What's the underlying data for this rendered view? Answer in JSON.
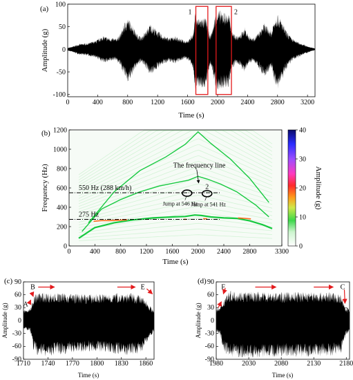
{
  "colors": {
    "signal": "#000000",
    "box": "#e31a1c",
    "arrow": "#e31a1c",
    "ridge": "#16c93f"
  },
  "chart_data": [
    {
      "id": "a",
      "panel_label": "(a)",
      "type": "area",
      "xlabel": "Time (s)",
      "ylabel": "Amplitude (g)",
      "xlim": [
        0,
        3300
      ],
      "ylim": [
        -105,
        100
      ],
      "xticks": [
        "0",
        "400",
        "800",
        "1200",
        "1600",
        "2000",
        "2400",
        "2800",
        "3200"
      ],
      "yticks": [
        "-100",
        "-50",
        "0",
        "50",
        "100"
      ],
      "envelope": {
        "t": [
          0,
          60,
          150,
          260,
          380,
          470,
          560,
          640,
          700,
          760,
          800,
          860,
          920,
          980,
          1040,
          1100,
          1200,
          1280,
          1360,
          1430,
          1500,
          1560,
          1620,
          1680,
          1700,
          1720,
          1750,
          1800,
          1850,
          1870,
          1900,
          1940,
          1980,
          2000,
          2050,
          2100,
          2150,
          2200,
          2240,
          2300,
          2360,
          2420,
          2480,
          2560,
          2620,
          2680,
          2720,
          2760,
          2800,
          2860,
          2920,
          3000,
          3080,
          3140,
          3200,
          3260,
          3300
        ],
        "pos": [
          3,
          6,
          12,
          14,
          20,
          30,
          26,
          24,
          34,
          60,
          70,
          58,
          36,
          28,
          40,
          58,
          42,
          30,
          26,
          30,
          24,
          20,
          22,
          40,
          85,
          72,
          70,
          72,
          70,
          50,
          30,
          52,
          88,
          90,
          85,
          83,
          80,
          40,
          30,
          32,
          50,
          30,
          26,
          40,
          58,
          48,
          40,
          72,
          80,
          62,
          40,
          24,
          16,
          12,
          7,
          4,
          2
        ],
        "neg": [
          -3,
          -6,
          -12,
          -14,
          -20,
          -30,
          -28,
          -24,
          -36,
          -62,
          -72,
          -60,
          -38,
          -30,
          -42,
          -58,
          -44,
          -32,
          -28,
          -32,
          -26,
          -22,
          -26,
          -50,
          -90,
          -86,
          -85,
          -88,
          -84,
          -60,
          -32,
          -56,
          -92,
          -95,
          -90,
          -88,
          -84,
          -44,
          -34,
          -36,
          -54,
          -32,
          -28,
          -44,
          -62,
          -52,
          -42,
          -76,
          -92,
          -68,
          -44,
          -26,
          -18,
          -12,
          -8,
          -4,
          -2
        ]
      },
      "regions": [
        {
          "label": "1",
          "x0": 1710,
          "x1": 1870,
          "y0": -100,
          "y1": 95
        },
        {
          "label": "2",
          "x0": 1980,
          "x1": 2185,
          "y0": -100,
          "y1": 95
        }
      ]
    },
    {
      "id": "b",
      "panel_label": "(b)",
      "type": "heatmap",
      "xlabel": "Time (s)",
      "ylabel": "Frequency (Hz)",
      "colorbar_label": "Amplitude (g)",
      "xlim": [
        0,
        3300
      ],
      "ylim": [
        0,
        1200
      ],
      "xticks": [
        "0",
        "400",
        "800",
        "1200",
        "1600",
        "2000",
        "2400",
        "2800",
        "3300"
      ],
      "xtick_values": [
        0,
        400,
        800,
        1200,
        1600,
        2000,
        2400,
        2800,
        3300
      ],
      "yticks": [
        "0",
        "200",
        "400",
        "600",
        "800",
        "1000",
        "1200"
      ],
      "colorbar_ticks": [
        "0",
        "10",
        "20",
        "30",
        "40"
      ],
      "colorbar_range": [
        0,
        40
      ],
      "ridges": [
        {
          "t": [
            150,
            400,
            700,
            1000,
            1300,
            1600,
            1800,
            1950,
            2050,
            2200,
            2400,
            2600,
            2800,
            3000,
            3150
          ],
          "f": [
            80,
            190,
            240,
            270,
            290,
            300,
            305,
            320,
            315,
            300,
            290,
            285,
            260,
            220,
            180
          ]
        },
        {
          "t": [
            200,
            500,
            800,
            1100,
            1400,
            1700,
            1850,
            2000,
            2150,
            2350,
            2600,
            2900,
            3100
          ],
          "f": [
            150,
            380,
            480,
            560,
            620,
            660,
            680,
            720,
            690,
            640,
            560,
            420,
            300
          ]
        },
        {
          "t": [
            300,
            700,
            1100,
            1500,
            1800,
            2000,
            2200,
            2500,
            2800,
            3100
          ],
          "f": [
            240,
            560,
            780,
            920,
            1050,
            1180,
            1060,
            900,
            700,
            450
          ]
        }
      ],
      "hot_segments": [
        {
          "t": [
            380,
            500,
            620,
            760,
            900
          ],
          "f": [
            255,
            262,
            262,
            266,
            270
          ]
        },
        {
          "t": [
            1780,
            1820
          ],
          "f": [
            276,
            276
          ]
        },
        {
          "t": [
            2080,
            2140
          ],
          "f": [
            282,
            282
          ]
        },
        {
          "t": [
            2620,
            2720,
            2820
          ],
          "f": [
            290,
            286,
            280
          ]
        }
      ],
      "ref_lines": [
        {
          "label": "550 Hz   (288 km/h)",
          "f": 550
        },
        {
          "label": "275 Hz",
          "f": 275
        }
      ],
      "annotations": [
        {
          "label": "The frequency line",
          "t": 2020,
          "f": 640
        },
        {
          "label": "Jump at 546 Hz",
          "t": 1830,
          "f": 546,
          "marker": "ellipse"
        },
        {
          "label": "Jump at 541 Hz",
          "t": 2140,
          "f": 541,
          "marker": "ellipse",
          "tag": "2"
        }
      ]
    },
    {
      "id": "c",
      "panel_label": "(c)",
      "type": "area",
      "xlabel": "Time (s)",
      "ylabel": "Amplitude (g)",
      "xlim": [
        1710,
        1870
      ],
      "ylim": [
        -90,
        90
      ],
      "xticks": [
        "1710",
        "1740",
        "1770",
        "1800",
        "1830",
        "1860"
      ],
      "xtick_values": [
        1710,
        1740,
        1770,
        1800,
        1830,
        1860
      ],
      "yticks": [
        "-90",
        "-60",
        "-30",
        "0",
        "30",
        "60",
        "90"
      ],
      "ytick_values": [
        -90,
        -60,
        -30,
        0,
        30,
        60,
        90
      ],
      "envelope": {
        "t": [
          1710,
          1718,
          1720,
          1722,
          1726,
          1735,
          1760,
          1790,
          1810,
          1835,
          1850,
          1860,
          1865,
          1870
        ],
        "pos": [
          25,
          28,
          40,
          55,
          65,
          66,
          64,
          62,
          63,
          66,
          62,
          50,
          35,
          25
        ],
        "neg": [
          -20,
          -25,
          -50,
          -70,
          -80,
          -85,
          -78,
          -72,
          -74,
          -82,
          -80,
          -62,
          -40,
          -25
        ]
      },
      "markers": [
        {
          "label": "A",
          "t": 1713,
          "a": 38
        },
        {
          "label": "B",
          "t": 1722,
          "a": 78
        },
        {
          "label": "E",
          "t": 1857,
          "a": 78
        }
      ]
    },
    {
      "id": "d",
      "panel_label": "(d)",
      "type": "area",
      "xlabel": "Time (s)",
      "ylabel": "Amplitude (g)",
      "xlim": [
        1980,
        2185
      ],
      "ylim": [
        -90,
        90
      ],
      "xticks": [
        "1980",
        "2030",
        "2080",
        "2130",
        "2180"
      ],
      "xtick_values": [
        1980,
        2030,
        2080,
        2130,
        2180
      ],
      "yticks": [
        "-90",
        "-60",
        "-30",
        "0",
        "30",
        "60",
        "90"
      ],
      "ytick_values": [
        -90,
        -60,
        -30,
        0,
        30,
        60,
        90
      ],
      "envelope": {
        "t": [
          1980,
          1986,
          1990,
          1995,
          2000,
          2030,
          2080,
          2120,
          2160,
          2172,
          2176,
          2180,
          2185
        ],
        "pos": [
          28,
          32,
          45,
          62,
          70,
          68,
          66,
          68,
          66,
          62,
          40,
          30,
          25
        ],
        "neg": [
          -28,
          -32,
          -60,
          -80,
          -85,
          -88,
          -84,
          -86,
          -82,
          -78,
          -50,
          -35,
          -28
        ]
      },
      "markers": [
        {
          "label": "F",
          "t": 1992,
          "a": 78
        },
        {
          "label": "C",
          "t": 2175,
          "a": 78
        },
        {
          "label": "D",
          "t": 2180,
          "a": 24
        }
      ]
    }
  ]
}
